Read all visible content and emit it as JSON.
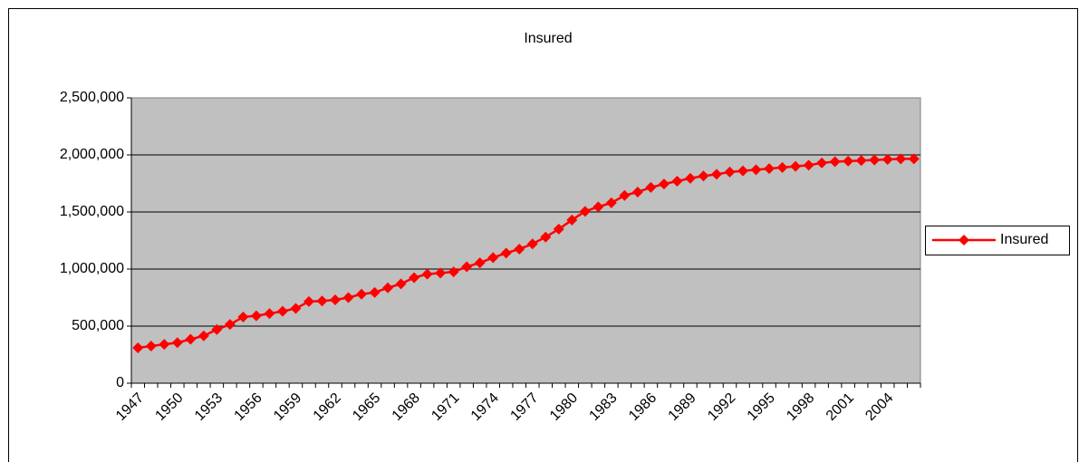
{
  "chart_data": {
    "type": "line",
    "title": "Insured",
    "categories": [
      "1947",
      null,
      null,
      "1950",
      null,
      null,
      "1953",
      null,
      null,
      "1956",
      null,
      null,
      "1959",
      null,
      null,
      "1962",
      null,
      null,
      "1965",
      null,
      null,
      "1968",
      null,
      null,
      "1971",
      null,
      null,
      "1974",
      null,
      null,
      "1977",
      null,
      null,
      "1980",
      null,
      null,
      "1983",
      null,
      null,
      "1986",
      null,
      null,
      "1989",
      null,
      null,
      "1992",
      null,
      null,
      "1995",
      null,
      null,
      "1998",
      null,
      null,
      "2001",
      null,
      null,
      "2004",
      null,
      null
    ],
    "series": [
      {
        "name": "Insured",
        "color": "#ff0000",
        "values": [
          310000,
          325000,
          340000,
          355000,
          385000,
          415000,
          470000,
          515000,
          580000,
          590000,
          610000,
          630000,
          655000,
          715000,
          720000,
          730000,
          750000,
          780000,
          795000,
          835000,
          870000,
          925000,
          955000,
          965000,
          975000,
          1020000,
          1055000,
          1100000,
          1140000,
          1175000,
          1220000,
          1280000,
          1350000,
          1430000,
          1505000,
          1545000,
          1580000,
          1645000,
          1675000,
          1715000,
          1745000,
          1770000,
          1795000,
          1815000,
          1830000,
          1850000,
          1860000,
          1870000,
          1880000,
          1890000,
          1900000,
          1910000,
          1930000,
          1940000,
          1945000,
          1950000,
          1955000,
          1960000,
          1965000,
          1965000
        ]
      }
    ],
    "ylim": [
      0,
      2500000
    ],
    "yticks": [
      0,
      {
        "value": 500000,
        "label": "500,000"
      },
      {
        "value": 1000000,
        "label": "1,000,000"
      },
      {
        "value": 1500000,
        "label": "1,500,000"
      },
      {
        "value": 2000000,
        "label": "2,000,000"
      },
      {
        "value": 2500000,
        "label": "2,500,000"
      }
    ],
    "grid": true,
    "legend": "right"
  }
}
